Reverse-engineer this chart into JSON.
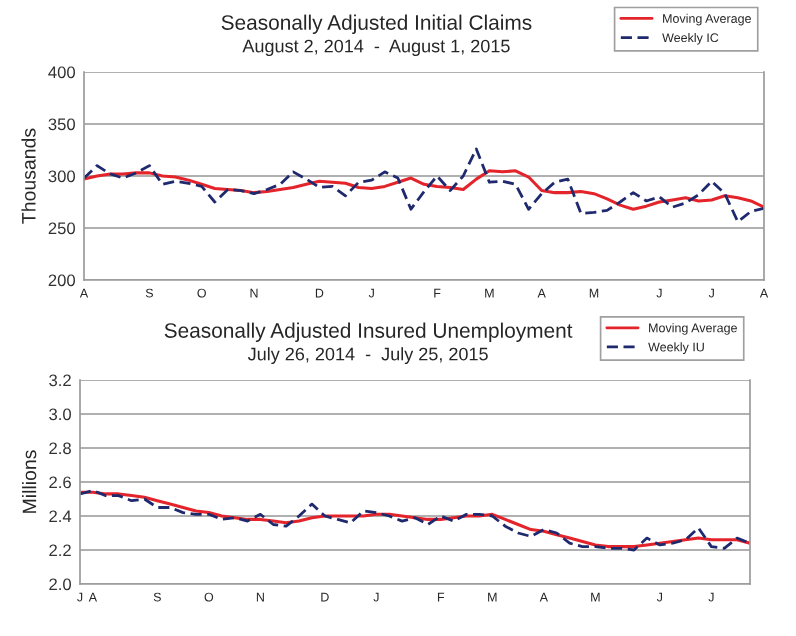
{
  "chart_data": [
    {
      "type": "line",
      "title": "Seasonally Adjusted Initial Claims",
      "subtitle": "August 2, 2014  -  August 1, 2015",
      "ylabel": "Thousands",
      "categories": [
        "A",
        null,
        null,
        null,
        null,
        "S",
        null,
        null,
        null,
        "O",
        null,
        null,
        null,
        "N",
        null,
        null,
        null,
        null,
        "D",
        null,
        null,
        null,
        "J",
        null,
        null,
        null,
        null,
        "F",
        null,
        null,
        null,
        "M",
        null,
        null,
        null,
        "A",
        null,
        null,
        null,
        "M",
        null,
        null,
        null,
        null,
        "J",
        null,
        null,
        null,
        "J",
        null,
        null,
        null,
        "A"
      ],
      "series": [
        {
          "name": "Moving Average",
          "color": "#e3242b",
          "line_style": "solid",
          "values": [
            297,
            300,
            302,
            302,
            303,
            303,
            300,
            299,
            296,
            292,
            288,
            287,
            286,
            284,
            285,
            287,
            289,
            292,
            295,
            294,
            293,
            289,
            288,
            290,
            294,
            298,
            292,
            290,
            289,
            287,
            297,
            305,
            304,
            305,
            299,
            286,
            284,
            284,
            285,
            283,
            278,
            272,
            268,
            271,
            275,
            277,
            279,
            276,
            277,
            281,
            279,
            276,
            270
          ]
        },
        {
          "name": "Weekly IC",
          "color": "#1f2a6e",
          "line_style": "dashed",
          "values": [
            298,
            310,
            302,
            298,
            303,
            310,
            292,
            295,
            293,
            290,
            275,
            287,
            286,
            283,
            287,
            292,
            304,
            297,
            289,
            290,
            281,
            294,
            296,
            304,
            298,
            268,
            285,
            300,
            286,
            300,
            326,
            294,
            295,
            292,
            268,
            283,
            294,
            297,
            264,
            265,
            267,
            275,
            284,
            276,
            280,
            270,
            274,
            282,
            295,
            283,
            256,
            266,
            269
          ]
        }
      ],
      "ylim": [
        200,
        400
      ],
      "yticks": [
        200,
        250,
        300,
        350,
        400
      ],
      "grid": "y",
      "legend": "top right",
      "marker": "none"
    },
    {
      "type": "line",
      "title": "Seasonally Adjusted Insured Unemployment",
      "subtitle": "July 26, 2014  -  July 25, 2015",
      "ylabel": "Millions",
      "categories": [
        "J",
        "A",
        null,
        null,
        null,
        null,
        "S",
        null,
        null,
        null,
        "O",
        null,
        null,
        null,
        "N",
        null,
        null,
        null,
        null,
        "D",
        null,
        null,
        null,
        "J",
        null,
        null,
        null,
        null,
        "F",
        null,
        null,
        null,
        "M",
        null,
        null,
        null,
        "A",
        null,
        null,
        null,
        "M",
        null,
        null,
        null,
        null,
        "J",
        null,
        null,
        null,
        "J",
        null,
        null,
        null
      ],
      "series": [
        {
          "name": "Moving Average",
          "color": "#e3242b",
          "line_style": "solid",
          "values": [
            2.54,
            2.54,
            2.53,
            2.53,
            2.52,
            2.51,
            2.49,
            2.47,
            2.45,
            2.43,
            2.42,
            2.4,
            2.39,
            2.38,
            2.38,
            2.37,
            2.36,
            2.37,
            2.39,
            2.4,
            2.4,
            2.4,
            2.4,
            2.41,
            2.41,
            2.4,
            2.39,
            2.38,
            2.38,
            2.39,
            2.4,
            2.4,
            2.41,
            2.38,
            2.35,
            2.32,
            2.31,
            2.29,
            2.27,
            2.25,
            2.23,
            2.22,
            2.22,
            2.22,
            2.23,
            2.24,
            2.25,
            2.26,
            2.27,
            2.26,
            2.26,
            2.26,
            2.24
          ]
        },
        {
          "name": "Weekly IU",
          "color": "#1f2a6e",
          "line_style": "dashed",
          "values": [
            2.53,
            2.55,
            2.52,
            2.52,
            2.49,
            2.5,
            2.45,
            2.45,
            2.42,
            2.41,
            2.41,
            2.38,
            2.39,
            2.37,
            2.41,
            2.35,
            2.34,
            2.4,
            2.47,
            2.4,
            2.38,
            2.36,
            2.43,
            2.42,
            2.4,
            2.37,
            2.39,
            2.35,
            2.4,
            2.37,
            2.41,
            2.41,
            2.4,
            2.34,
            2.3,
            2.28,
            2.32,
            2.3,
            2.24,
            2.22,
            2.22,
            2.21,
            2.21,
            2.2,
            2.27,
            2.23,
            2.24,
            2.26,
            2.33,
            2.22,
            2.21,
            2.27,
            2.24
          ]
        }
      ],
      "ylim": [
        2.0,
        3.2
      ],
      "yticks": [
        {
          "value": 2.0,
          "label": "2.0"
        },
        {
          "value": 2.2,
          "label": "2.2"
        },
        {
          "value": 2.4,
          "label": "2.4"
        },
        {
          "value": 2.6,
          "label": "2.6"
        },
        {
          "value": 2.8,
          "label": "2.8"
        },
        {
          "value": 3.0,
          "label": "3.0"
        },
        {
          "value": 3.2,
          "label": "3.2"
        }
      ],
      "grid": "y",
      "legend": "top right",
      "marker": "none"
    }
  ]
}
